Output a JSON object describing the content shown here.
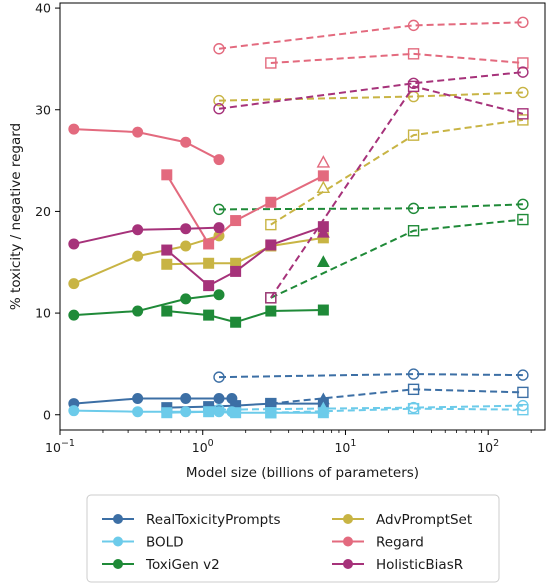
{
  "chart_data": {
    "type": "line",
    "xlabel": "Model size (billions of parameters)",
    "ylabel": "% toxicity / negative regard",
    "x_scale": "log",
    "xlim": [
      0.1,
      250
    ],
    "ylim": [
      -1.5,
      40.5
    ],
    "x_ticks": [
      {
        "value": 0.1,
        "base": "10",
        "exp": "−1"
      },
      {
        "value": 1,
        "base": "10",
        "exp": "0"
      },
      {
        "value": 10,
        "base": "10",
        "exp": "1"
      },
      {
        "value": 100,
        "base": "10",
        "exp": "2"
      }
    ],
    "y_ticks": [
      0,
      10,
      20,
      30,
      40
    ],
    "grid": false,
    "legend": {
      "placement": "below plot",
      "entries": [
        {
          "label": "RealToxicityPrompts",
          "color": "#3c6fa5"
        },
        {
          "label": "BOLD",
          "color": "#6ccbea"
        },
        {
          "label": "ToxiGen v2",
          "color": "#1f8a38"
        },
        {
          "label": "AdvPromptSet",
          "color": "#c8b444"
        },
        {
          "label": "Regard",
          "color": "#e36a7e"
        },
        {
          "label": "HolisticBiasR",
          "color": "#a6327a"
        }
      ]
    },
    "series": [
      {
        "dataset": "RealToxicityPrompts",
        "color": "#3c6fa5",
        "marker": "circle",
        "fill": true,
        "dash": false,
        "x": [
          0.125,
          0.35,
          0.76,
          1.3,
          1.6
        ],
        "y": [
          1.1,
          1.6,
          1.6,
          1.6,
          1.6
        ]
      },
      {
        "dataset": "RealToxicityPrompts",
        "color": "#3c6fa5",
        "marker": "square",
        "fill": true,
        "dash": false,
        "x": [
          0.56,
          1.1,
          1.7,
          3,
          7
        ],
        "y": [
          0.7,
          0.8,
          0.9,
          1.1,
          1.1
        ]
      },
      {
        "dataset": "RealToxicityPrompts",
        "color": "#3c6fa5",
        "marker": "triangle",
        "fill": true,
        "dash": false,
        "x": [
          7
        ],
        "y": [
          1.5
        ]
      },
      {
        "dataset": "RealToxicityPrompts",
        "color": "#3c6fa5",
        "marker": "circle",
        "fill": false,
        "dash": true,
        "x": [
          1.3,
          30,
          175
        ],
        "y": [
          3.7,
          4.0,
          3.9
        ]
      },
      {
        "dataset": "RealToxicityPrompts",
        "color": "#3c6fa5",
        "marker": "square",
        "fill": false,
        "dash": true,
        "x": [
          3,
          30,
          175
        ],
        "y": [
          1.1,
          2.5,
          2.2
        ]
      },
      {
        "dataset": "BOLD",
        "color": "#6ccbea",
        "marker": "circle",
        "fill": true,
        "dash": false,
        "x": [
          0.125,
          0.35,
          0.76,
          1.3,
          1.6
        ],
        "y": [
          0.4,
          0.3,
          0.3,
          0.3,
          0.3
        ]
      },
      {
        "dataset": "BOLD",
        "color": "#6ccbea",
        "marker": "square",
        "fill": true,
        "dash": false,
        "x": [
          0.56,
          1.1,
          1.7,
          3,
          7
        ],
        "y": [
          0.2,
          0.3,
          0.2,
          0.2,
          0.2
        ]
      },
      {
        "dataset": "BOLD",
        "color": "#6ccbea",
        "marker": "triangle",
        "fill": true,
        "dash": false,
        "x": [
          7
        ],
        "y": [
          0.6
        ]
      },
      {
        "dataset": "BOLD",
        "color": "#6ccbea",
        "marker": "circle",
        "fill": false,
        "dash": true,
        "x": [
          1.3,
          30,
          175
        ],
        "y": [
          0.5,
          0.7,
          0.9
        ]
      },
      {
        "dataset": "BOLD",
        "color": "#6ccbea",
        "marker": "square",
        "fill": false,
        "dash": true,
        "x": [
          3,
          30,
          175
        ],
        "y": [
          0.2,
          0.6,
          0.5
        ]
      },
      {
        "dataset": "ToxiGen v2",
        "color": "#1f8a38",
        "marker": "circle",
        "fill": true,
        "dash": false,
        "x": [
          0.125,
          0.35,
          0.76,
          1.3
        ],
        "y": [
          9.8,
          10.2,
          11.4,
          11.8
        ]
      },
      {
        "dataset": "ToxiGen v2",
        "color": "#1f8a38",
        "marker": "square",
        "fill": true,
        "dash": false,
        "x": [
          0.56,
          1.1,
          1.7,
          3,
          7
        ],
        "y": [
          10.2,
          9.8,
          9.1,
          10.2,
          10.3
        ]
      },
      {
        "dataset": "ToxiGen v2",
        "color": "#1f8a38",
        "marker": "triangle",
        "fill": true,
        "dash": false,
        "x": [
          7
        ],
        "y": [
          15.0
        ]
      },
      {
        "dataset": "ToxiGen v2",
        "color": "#1f8a38",
        "marker": "circle",
        "fill": false,
        "dash": true,
        "x": [
          1.3,
          30,
          175
        ],
        "y": [
          20.2,
          20.3,
          20.7
        ]
      },
      {
        "dataset": "ToxiGen v2",
        "color": "#1f8a38",
        "marker": "square",
        "fill": false,
        "dash": true,
        "x": [
          3,
          30,
          175
        ],
        "y": [
          11.5,
          18.1,
          19.2
        ]
      },
      {
        "dataset": "AdvPromptSet",
        "color": "#c8b444",
        "marker": "circle",
        "fill": true,
        "dash": false,
        "x": [
          0.125,
          0.35,
          0.76,
          1.3
        ],
        "y": [
          12.9,
          15.6,
          16.6,
          17.6
        ]
      },
      {
        "dataset": "AdvPromptSet",
        "color": "#c8b444",
        "marker": "square",
        "fill": true,
        "dash": false,
        "x": [
          0.56,
          1.1,
          1.7,
          3,
          7
        ],
        "y": [
          14.8,
          14.9,
          14.9,
          16.6,
          17.4
        ]
      },
      {
        "dataset": "AdvPromptSet",
        "color": "#c8b444",
        "marker": "triangle",
        "fill": false,
        "dash": false,
        "x": [
          7
        ],
        "y": [
          22.3
        ]
      },
      {
        "dataset": "AdvPromptSet",
        "color": "#c8b444",
        "marker": "circle",
        "fill": false,
        "dash": true,
        "x": [
          1.3,
          30,
          175
        ],
        "y": [
          30.9,
          31.3,
          31.7
        ]
      },
      {
        "dataset": "AdvPromptSet",
        "color": "#c8b444",
        "marker": "square",
        "fill": false,
        "dash": true,
        "x": [
          3,
          30,
          175
        ],
        "y": [
          18.7,
          27.5,
          29.0
        ]
      },
      {
        "dataset": "Regard",
        "color": "#e36a7e",
        "marker": "circle",
        "fill": true,
        "dash": false,
        "x": [
          0.125,
          0.35,
          0.76,
          1.3
        ],
        "y": [
          28.1,
          27.8,
          26.8,
          25.1
        ]
      },
      {
        "dataset": "Regard",
        "color": "#e36a7e",
        "marker": "square",
        "fill": true,
        "dash": false,
        "x": [
          0.56,
          1.1,
          1.7,
          3,
          7
        ],
        "y": [
          23.6,
          16.8,
          19.1,
          20.9,
          23.5
        ]
      },
      {
        "dataset": "Regard",
        "color": "#e36a7e",
        "marker": "triangle",
        "fill": false,
        "dash": false,
        "x": [
          7
        ],
        "y": [
          24.8
        ]
      },
      {
        "dataset": "Regard",
        "color": "#e36a7e",
        "marker": "circle",
        "fill": false,
        "dash": true,
        "x": [
          1.3,
          30,
          175
        ],
        "y": [
          36.0,
          38.3,
          38.6
        ]
      },
      {
        "dataset": "Regard",
        "color": "#e36a7e",
        "marker": "square",
        "fill": false,
        "dash": true,
        "x": [
          3,
          30,
          175
        ],
        "y": [
          34.6,
          35.5,
          34.6
        ]
      },
      {
        "dataset": "HolisticBiasR",
        "color": "#a6327a",
        "marker": "circle",
        "fill": true,
        "dash": false,
        "x": [
          0.125,
          0.35,
          0.76,
          1.3
        ],
        "y": [
          16.8,
          18.2,
          18.3,
          18.4
        ]
      },
      {
        "dataset": "HolisticBiasR",
        "color": "#a6327a",
        "marker": "square",
        "fill": true,
        "dash": false,
        "x": [
          0.56,
          1.1,
          1.7,
          3,
          7
        ],
        "y": [
          16.2,
          12.7,
          14.1,
          16.7,
          18.5
        ]
      },
      {
        "dataset": "HolisticBiasR",
        "color": "#a6327a",
        "marker": "triangle",
        "fill": true,
        "dash": false,
        "x": [
          7
        ],
        "y": [
          17.9
        ]
      },
      {
        "dataset": "HolisticBiasR",
        "color": "#a6327a",
        "marker": "circle",
        "fill": false,
        "dash": true,
        "x": [
          1.3,
          30,
          175
        ],
        "y": [
          30.1,
          32.6,
          33.7
        ]
      },
      {
        "dataset": "HolisticBiasR",
        "color": "#a6327a",
        "marker": "square",
        "fill": false,
        "dash": true,
        "x": [
          3,
          30,
          175
        ],
        "y": [
          11.5,
          32.3,
          29.6
        ]
      }
    ]
  }
}
